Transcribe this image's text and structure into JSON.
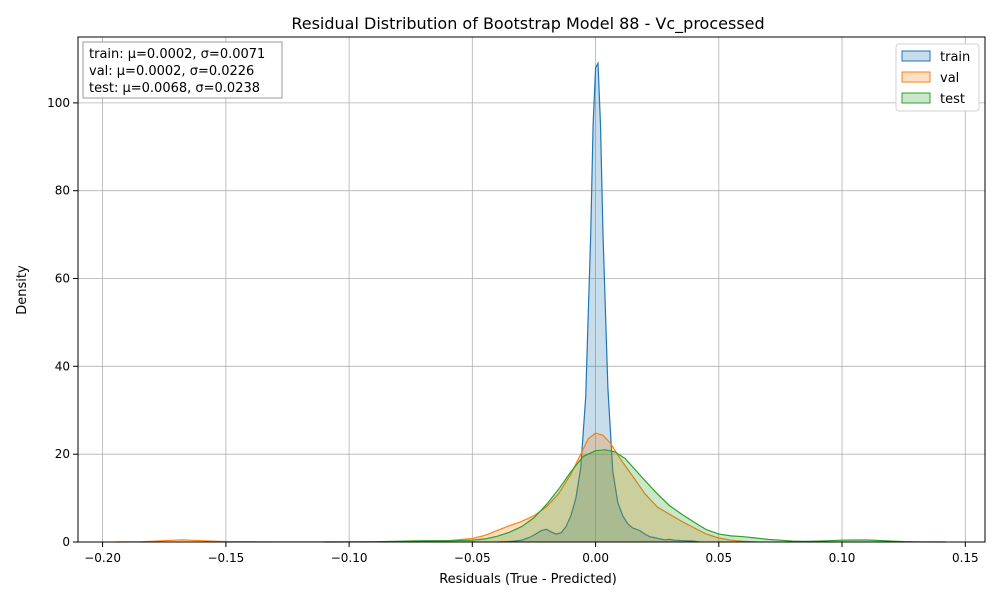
{
  "chart_data": {
    "type": "area",
    "title": "Residual Distribution of Bootstrap Model 88 - Vc_processed",
    "xlabel": "Residuals (True - Predicted)",
    "ylabel": "Density",
    "xlim": [
      -0.21,
      0.158
    ],
    "ylim": [
      0,
      115
    ],
    "xticks": [
      -0.2,
      -0.15,
      -0.1,
      -0.05,
      0.0,
      0.05,
      0.1,
      0.15
    ],
    "xtick_labels": [
      "−0.20",
      "−0.15",
      "−0.10",
      "−0.05",
      "0.00",
      "0.05",
      "0.10",
      "0.15"
    ],
    "yticks": [
      0,
      20,
      40,
      60,
      80,
      100
    ],
    "ytick_labels": [
      "0",
      "20",
      "40",
      "60",
      "80",
      "100"
    ],
    "grid": true,
    "legend_position": "top-right",
    "stats_box": [
      "train: μ=0.0002, σ=0.0071",
      "val: μ=0.0002, σ=0.0226",
      "test: μ=0.0068, σ=0.0238"
    ],
    "series": [
      {
        "name": "train",
        "color": "#1f77b4",
        "points": [
          [
            -0.04,
            0
          ],
          [
            -0.035,
            0.1
          ],
          [
            -0.03,
            0.4
          ],
          [
            -0.027,
            1.0
          ],
          [
            -0.025,
            1.6
          ],
          [
            -0.022,
            2.6
          ],
          [
            -0.02,
            2.9
          ],
          [
            -0.018,
            2.3
          ],
          [
            -0.016,
            1.8
          ],
          [
            -0.014,
            2.1
          ],
          [
            -0.012,
            3.5
          ],
          [
            -0.01,
            6
          ],
          [
            -0.008,
            10
          ],
          [
            -0.006,
            17
          ],
          [
            -0.004,
            33
          ],
          [
            -0.002,
            70
          ],
          [
            -0.001,
            95
          ],
          [
            0.0,
            108
          ],
          [
            0.001,
            109
          ],
          [
            0.002,
            95
          ],
          [
            0.003,
            70
          ],
          [
            0.005,
            35
          ],
          [
            0.007,
            16
          ],
          [
            0.009,
            9
          ],
          [
            0.011,
            6
          ],
          [
            0.013,
            4.2
          ],
          [
            0.015,
            3.2
          ],
          [
            0.018,
            2.6
          ],
          [
            0.02,
            1.8
          ],
          [
            0.022,
            1.2
          ],
          [
            0.024,
            1.0
          ],
          [
            0.026,
            0.7
          ],
          [
            0.028,
            0.5
          ],
          [
            0.03,
            0.6
          ],
          [
            0.032,
            0.4
          ],
          [
            0.036,
            0.3
          ],
          [
            0.04,
            0.2
          ],
          [
            0.042,
            0
          ]
        ]
      },
      {
        "name": "val",
        "color": "#ff7f0e",
        "points": [
          [
            -0.195,
            0
          ],
          [
            -0.185,
            0.05
          ],
          [
            -0.175,
            0.3
          ],
          [
            -0.168,
            0.5
          ],
          [
            -0.16,
            0.3
          ],
          [
            -0.15,
            0.1
          ],
          [
            -0.13,
            0.05
          ],
          [
            -0.1,
            0.02
          ],
          [
            -0.07,
            0.1
          ],
          [
            -0.06,
            0.3
          ],
          [
            -0.05,
            0.8
          ],
          [
            -0.045,
            1.5
          ],
          [
            -0.04,
            2.6
          ],
          [
            -0.035,
            3.7
          ],
          [
            -0.03,
            4.7
          ],
          [
            -0.025,
            6
          ],
          [
            -0.02,
            8
          ],
          [
            -0.015,
            11
          ],
          [
            -0.01,
            15.5
          ],
          [
            -0.006,
            20
          ],
          [
            -0.003,
            23.5
          ],
          [
            0.0,
            24.8
          ],
          [
            0.003,
            24.3
          ],
          [
            0.006,
            22.5
          ],
          [
            0.01,
            19
          ],
          [
            0.015,
            15
          ],
          [
            0.02,
            11
          ],
          [
            0.025,
            8
          ],
          [
            0.03,
            6.3
          ],
          [
            0.035,
            4.7
          ],
          [
            0.04,
            3.2
          ],
          [
            0.045,
            1.8
          ],
          [
            0.05,
            0.9
          ],
          [
            0.055,
            0.4
          ],
          [
            0.06,
            0.15
          ],
          [
            0.065,
            0
          ]
        ]
      },
      {
        "name": "test",
        "color": "#2ca02c",
        "points": [
          [
            -0.11,
            0
          ],
          [
            -0.09,
            0.05
          ],
          [
            -0.07,
            0.3
          ],
          [
            -0.06,
            0.3
          ],
          [
            -0.05,
            0.4
          ],
          [
            -0.045,
            0.7
          ],
          [
            -0.04,
            1.3
          ],
          [
            -0.035,
            2.2
          ],
          [
            -0.03,
            3.5
          ],
          [
            -0.025,
            5.5
          ],
          [
            -0.02,
            8.5
          ],
          [
            -0.015,
            12
          ],
          [
            -0.01,
            16
          ],
          [
            -0.005,
            19.5
          ],
          [
            0.0,
            20.8
          ],
          [
            0.004,
            21.0
          ],
          [
            0.008,
            20.5
          ],
          [
            0.012,
            19
          ],
          [
            0.016,
            16.5
          ],
          [
            0.02,
            14
          ],
          [
            0.025,
            11
          ],
          [
            0.03,
            8.3
          ],
          [
            0.035,
            6.3
          ],
          [
            0.04,
            4.5
          ],
          [
            0.045,
            2.8
          ],
          [
            0.05,
            1.8
          ],
          [
            0.055,
            1.4
          ],
          [
            0.06,
            1.2
          ],
          [
            0.065,
            0.9
          ],
          [
            0.07,
            0.6
          ],
          [
            0.075,
            0.4
          ],
          [
            0.08,
            0.2
          ],
          [
            0.085,
            0.15
          ],
          [
            0.09,
            0.2
          ],
          [
            0.095,
            0.3
          ],
          [
            0.1,
            0.4
          ],
          [
            0.105,
            0.45
          ],
          [
            0.11,
            0.45
          ],
          [
            0.115,
            0.35
          ],
          [
            0.12,
            0.2
          ],
          [
            0.125,
            0.1
          ],
          [
            0.13,
            0.05
          ],
          [
            0.135,
            0.02
          ],
          [
            0.142,
            0
          ]
        ]
      }
    ]
  }
}
